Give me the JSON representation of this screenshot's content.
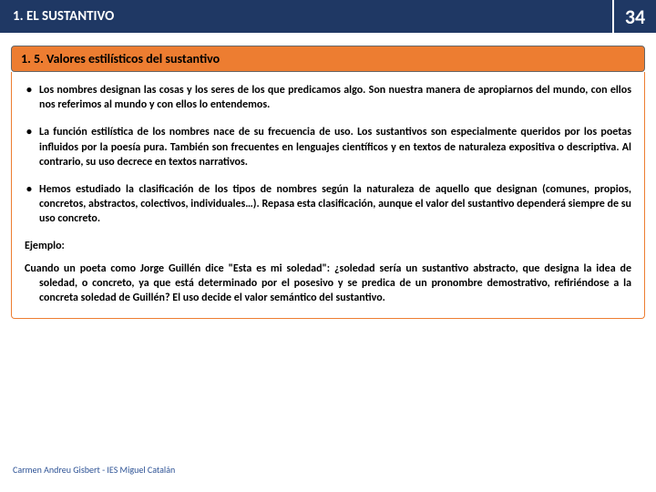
{
  "header": {
    "title": "1. EL SUSTANTIVO",
    "page_number": "34",
    "title_bg": "#1f3864",
    "title_color": "#ffffff"
  },
  "section": {
    "label": "1. 5. Valores estilísticos del sustantivo",
    "bg": "#ed7d31",
    "text_color": "#000000"
  },
  "content": {
    "bullets": [
      "Los nombres designan las cosas y los seres de los que predicamos algo. Son nuestra manera de apropiarnos del mundo, con ellos nos referimos al mundo y con ellos lo entendemos.",
      "La función estilística de los nombres nace de su frecuencia de uso. Los sustantivos son especialmente queridos por los poetas influidos por la poesía pura. También son frecuentes en lenguajes científicos y en textos de naturaleza expositiva o descriptiva. Al contrario, su uso decrece en textos narrativos.",
      "Hemos estudiado la clasificación de los tipos de nombres según la naturaleza de aquello que designan (comunes, propios, concretos, abstractos, colectivos, individuales…). Repasa esta clasificación, aunque el valor del sustantivo dependerá siempre de su uso concreto."
    ],
    "example_label": "Ejemplo:",
    "example_text": "Cuando un poeta como Jorge Guillén dice \"Esta es mi soledad\": ¿soledad sería un sustantivo abstracto, que designa la idea de soledad, o concreto, ya que está determinado por el posesivo y se predica de un pronombre demostrativo, refiriéndose a la concreta soledad de Guillén? El uso decide el valor semántico del sustantivo."
  },
  "footer": {
    "text": "Carmen Andreu Gisbert - IES Miguel Catalán",
    "color": "#2f5496"
  }
}
